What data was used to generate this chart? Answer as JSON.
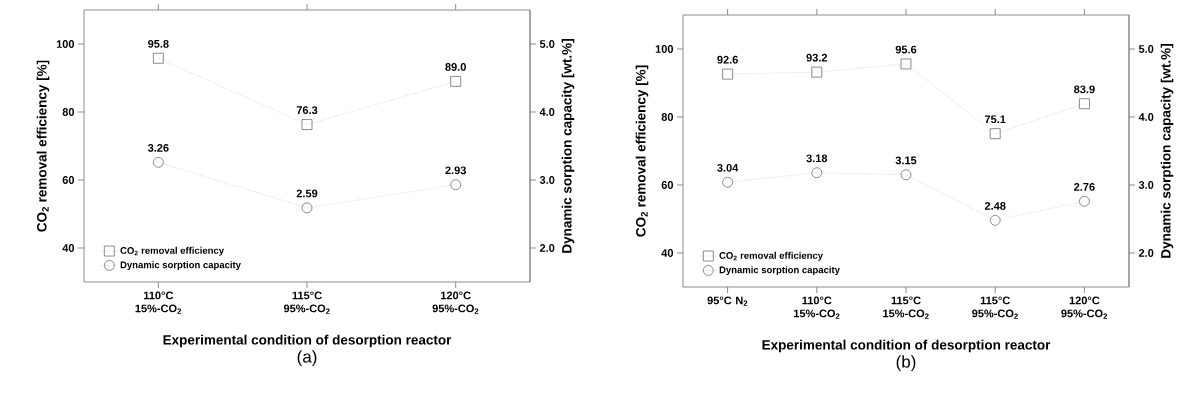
{
  "chart_data": [
    {
      "type": "line",
      "categories": [
        "110°C 15%-CO$_{2}$",
        "115°C 95%-CO$_{2}$",
        "120°C 95%-CO$_{2}$"
      ],
      "xlabel": "Experimental condition of desorption reactor",
      "ylabel": "CO$_{2}$ removal efficiency [%]",
      "y2label": "Dynamic sorption capacity [wt.%]",
      "ylim": [
        30,
        110
      ],
      "yticks": [
        40,
        60,
        80,
        100
      ],
      "y2lim": [
        1.5,
        5.5
      ],
      "y2ticks": [
        {
          "value": 2,
          "label": "2.0"
        },
        {
          "value": 3,
          "label": "3.0"
        },
        {
          "value": 4,
          "label": "4.0"
        },
        {
          "value": 5,
          "label": "5.0"
        }
      ],
      "legend": "bottom left",
      "line_style": "dotted",
      "annotations": [
        "(a)"
      ],
      "series": [
        {
          "name": "CO$_{2}$ removal efficiency",
          "color": "#707070",
          "marker": "square",
          "values": [
            95.8,
            76.3,
            89.0
          ],
          "value_labels": [
            "95.8",
            "76.3",
            "89.0"
          ]
        },
        {
          "name": "Dynamic sorption capacity",
          "color": "#707070",
          "marker": "circle",
          "axis": "y2",
          "values": [
            3.26,
            2.59,
            2.93
          ],
          "value_labels": [
            "3.26",
            "2.59",
            "2.93"
          ]
        }
      ]
    },
    {
      "type": "line",
      "categories": [
        "95°C N$_{2}$",
        "110°C 15%-CO$_{2}$",
        "115°C 15%-CO$_{2}$",
        "115°C 95%-CO$_{2}$",
        "120°C 95%-CO$_{2}$"
      ],
      "xlabel": "Experimental condition of desorption reactor",
      "ylabel": "CO$_{2}$ removal efficiency [%]",
      "y2label": "Dynamic sorption capacity [wt.%]",
      "ylim": [
        30,
        110
      ],
      "yticks": [
        40,
        60,
        80,
        100
      ],
      "y2lim": [
        1.5,
        5.5
      ],
      "y2ticks": [
        {
          "value": 2,
          "label": "2.0"
        },
        {
          "value": 3,
          "label": "3.0"
        },
        {
          "value": 4,
          "label": "4.0"
        },
        {
          "value": 5,
          "label": "5.0"
        }
      ],
      "legend": "bottom left",
      "line_style": "dotted",
      "annotations": [
        "(b)"
      ],
      "series": [
        {
          "name": "CO$_{2}$ removal efficiency",
          "color": "#707070",
          "marker": "square",
          "values": [
            92.6,
            93.2,
            95.6,
            75.1,
            83.9
          ],
          "value_labels": [
            "92.6",
            "93.2",
            "95.6",
            "75.1",
            "83.9"
          ]
        },
        {
          "name": "Dynamic sorption capacity",
          "color": "#707070",
          "marker": "circle",
          "axis": "y2",
          "values": [
            3.04,
            3.18,
            3.15,
            2.48,
            2.76
          ],
          "value_labels": [
            "3.04",
            "3.18",
            "3.15",
            "2.48",
            "2.76"
          ]
        }
      ]
    }
  ]
}
